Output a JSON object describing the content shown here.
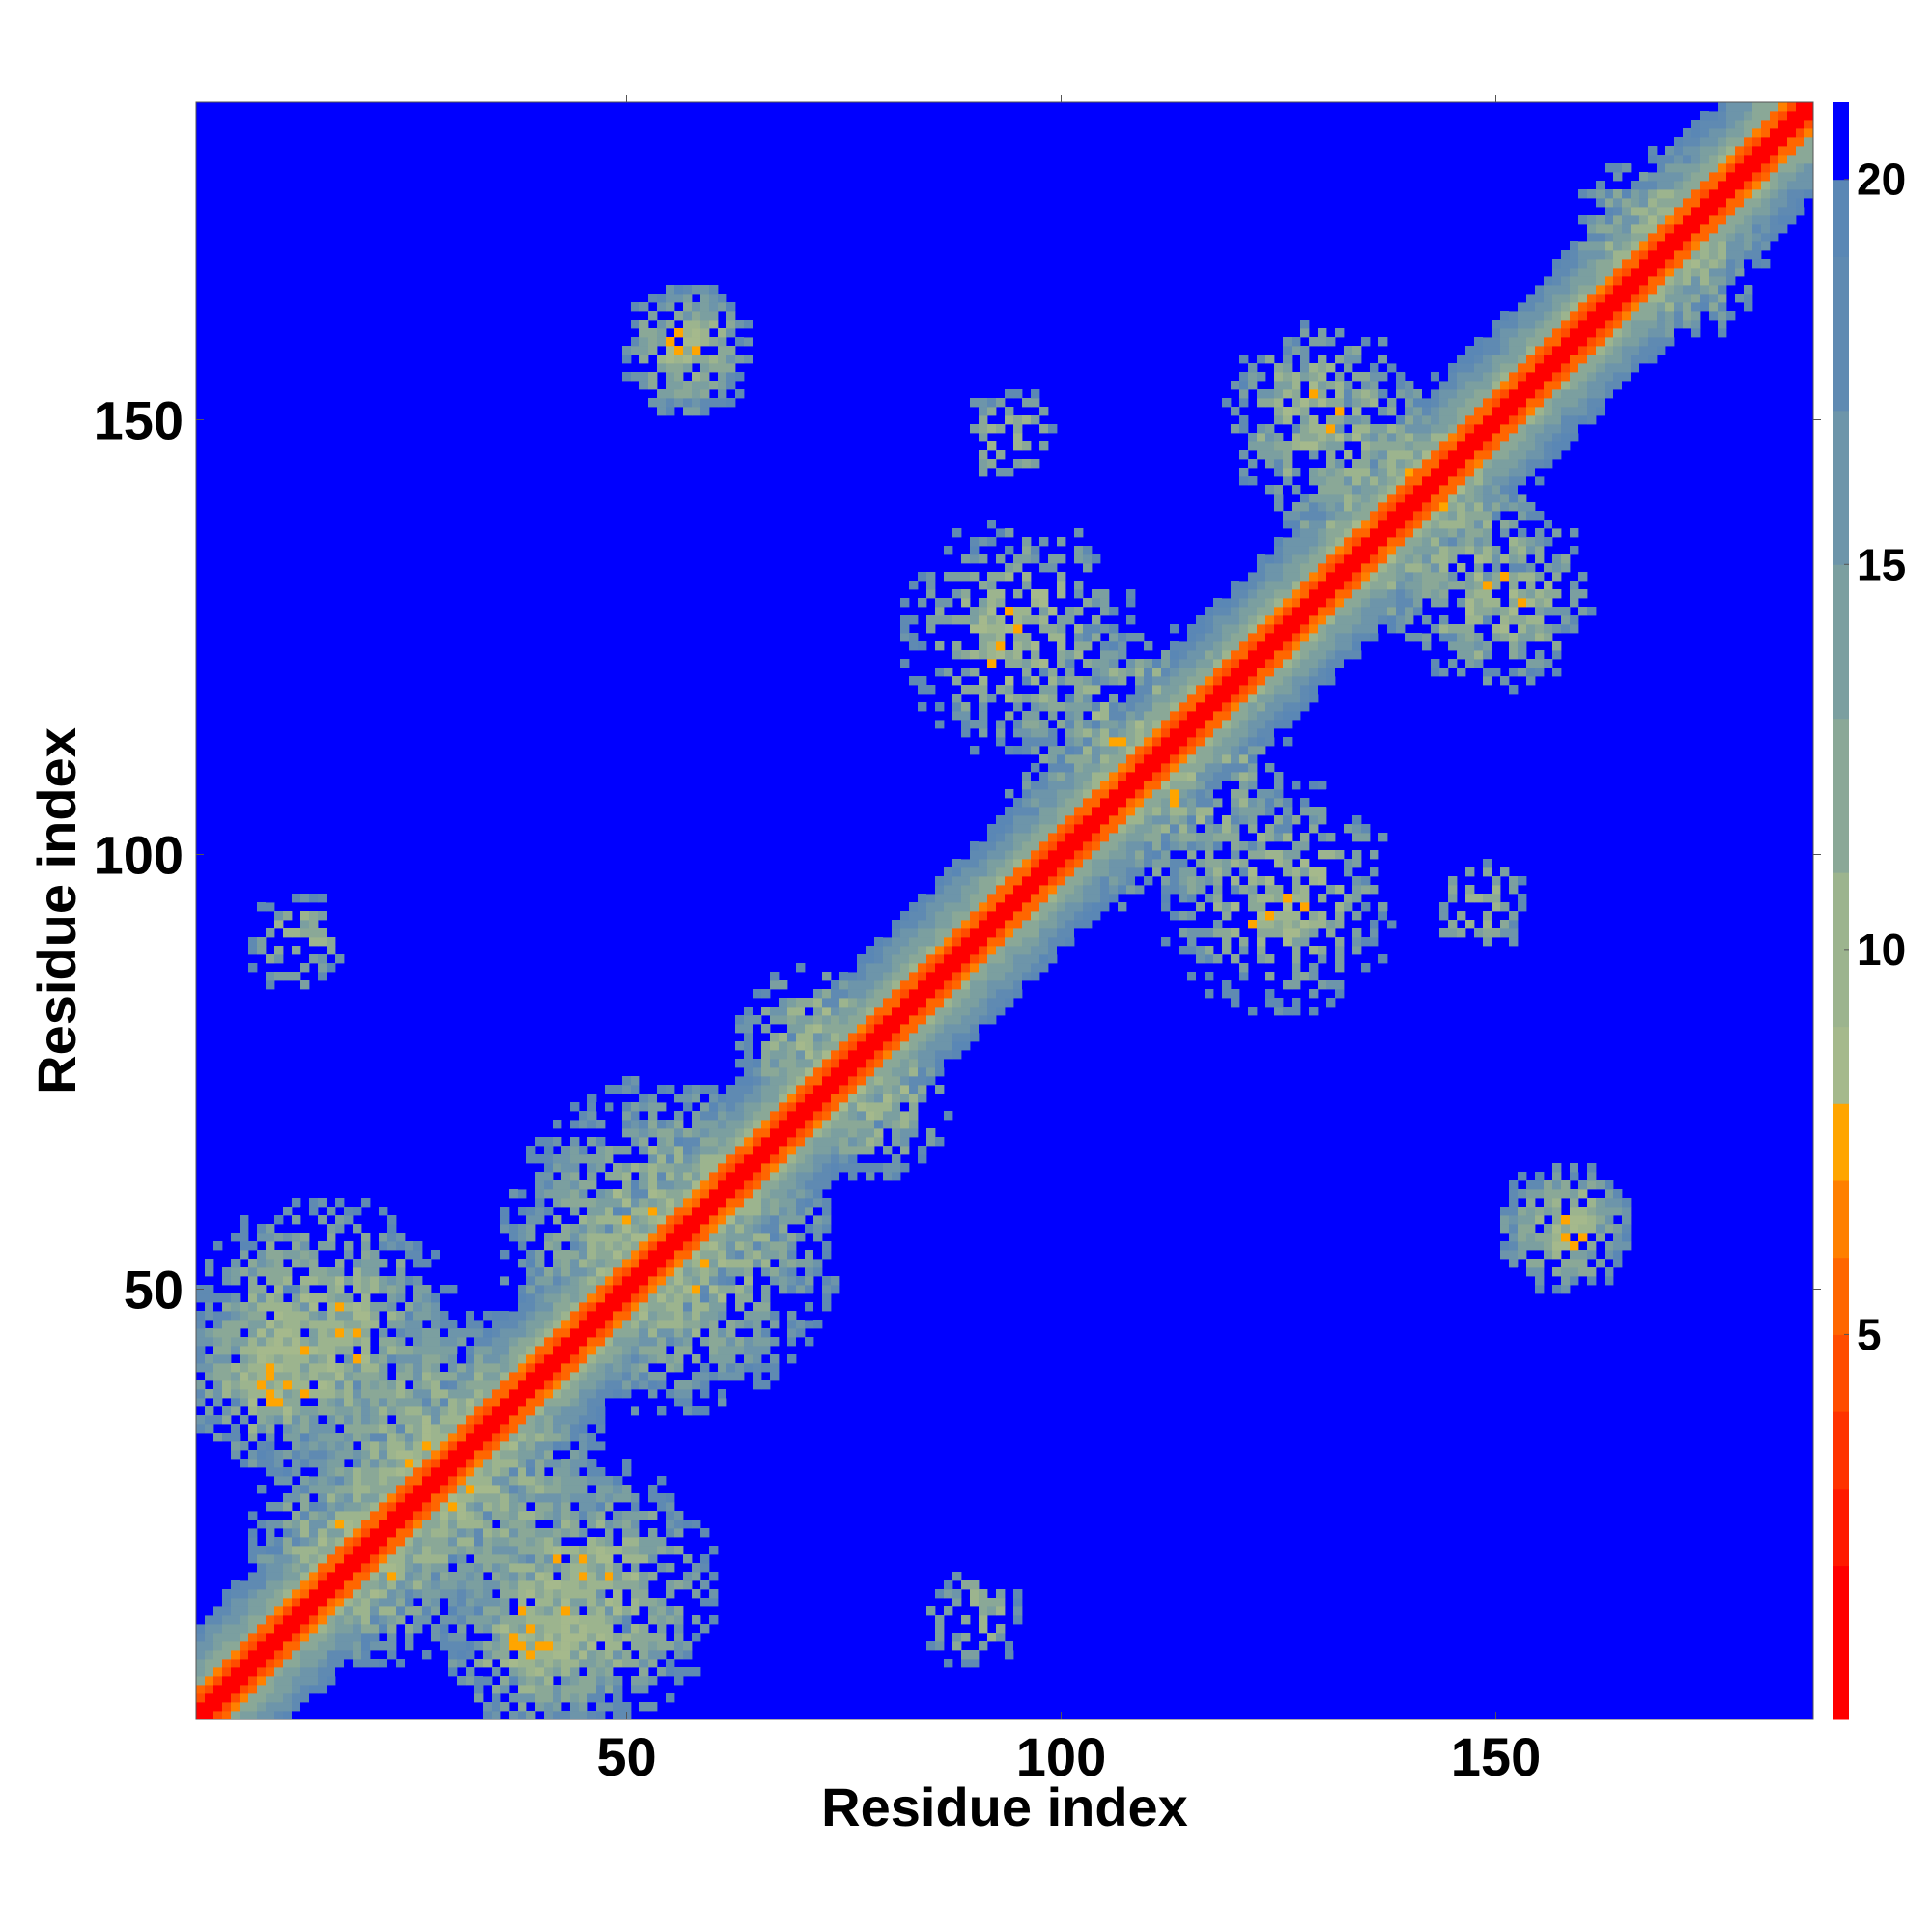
{
  "chart_data": {
    "type": "heatmap",
    "title": "",
    "xlabel": "Residue index",
    "ylabel": "Residue index",
    "n_residues": 186,
    "xlim": [
      1,
      186
    ],
    "ylim": [
      1,
      186
    ],
    "xticks": [
      50,
      100,
      150
    ],
    "yticks": [
      50,
      100,
      150
    ],
    "x_tick_labels": [
      "50",
      "100",
      "150"
    ],
    "y_tick_labels": [
      "50",
      "100",
      "150"
    ],
    "value_cutoff": 21,
    "colorbar": {
      "ticks": [
        5,
        10,
        15,
        20
      ],
      "tick_labels": [
        "5",
        "10",
        "15",
        "20"
      ],
      "range": [
        0,
        21
      ],
      "levels": [
        {
          "max": 2,
          "color": "#ff0000"
        },
        {
          "max": 3,
          "color": "#ff1a00"
        },
        {
          "max": 4,
          "color": "#ff3300"
        },
        {
          "max": 5,
          "color": "#ff4d00"
        },
        {
          "max": 6,
          "color": "#ff6600"
        },
        {
          "max": 7,
          "color": "#ff8000"
        },
        {
          "max": 8,
          "color": "#ffa500"
        },
        {
          "max": 9,
          "color": "#a5b98c"
        },
        {
          "max": 11,
          "color": "#9cb48e"
        },
        {
          "max": 13,
          "color": "#8aa897"
        },
        {
          "max": 15,
          "color": "#7b9fa0"
        },
        {
          "max": 17,
          "color": "#6d95aa"
        },
        {
          "max": 19,
          "color": "#5f8ab2"
        },
        {
          "max": 20,
          "color": "#5a87b5"
        },
        {
          "max": 21,
          "color": "#0000ff"
        }
      ]
    },
    "diagonal": {
      "width_residues": 5
    },
    "contact_clusters": [
      {
        "center": [
          55,
          55
        ],
        "extent": 20,
        "density": 0.55
      },
      {
        "center": [
          30,
          30
        ],
        "extent": 18,
        "density": 0.6
      },
      {
        "center": [
          15,
          45
        ],
        "extent": 16,
        "density": 0.55
      },
      {
        "center": [
          45,
          15
        ],
        "extent": 16,
        "density": 0.55
      },
      {
        "center": [
          20,
          20
        ],
        "extent": 14,
        "density": 0.5
      },
      {
        "center": [
          40,
          10
        ],
        "extent": 12,
        "density": 0.45
      },
      {
        "center": [
          10,
          40
        ],
        "extent": 12,
        "density": 0.45
      },
      {
        "center": [
          72,
          78
        ],
        "extent": 10,
        "density": 0.4
      },
      {
        "center": [
          78,
          72
        ],
        "extent": 10,
        "density": 0.4
      },
      {
        "center": [
          108,
          112
        ],
        "extent": 16,
        "density": 0.45
      },
      {
        "center": [
          95,
          125
        ],
        "extent": 14,
        "density": 0.35
      },
      {
        "center": [
          125,
          95
        ],
        "extent": 14,
        "density": 0.35
      },
      {
        "center": [
          140,
          140
        ],
        "extent": 16,
        "density": 0.4
      },
      {
        "center": [
          130,
          150
        ],
        "extent": 12,
        "density": 0.35
      },
      {
        "center": [
          150,
          130
        ],
        "extent": 12,
        "density": 0.35
      },
      {
        "center": [
          170,
          170
        ],
        "extent": 12,
        "density": 0.35
      },
      {
        "center": [
          57,
          158
        ],
        "extent": 8,
        "density": 0.6
      },
      {
        "center": [
          158,
          57
        ],
        "extent": 8,
        "density": 0.6
      },
      {
        "center": [
          90,
          12
        ],
        "extent": 6,
        "density": 0.35
      },
      {
        "center": [
          12,
          90
        ],
        "extent": 6,
        "density": 0.35
      },
      {
        "center": [
          94,
          148
        ],
        "extent": 6,
        "density": 0.25
      },
      {
        "center": [
          148,
          94
        ],
        "extent": 6,
        "density": 0.25
      }
    ]
  }
}
